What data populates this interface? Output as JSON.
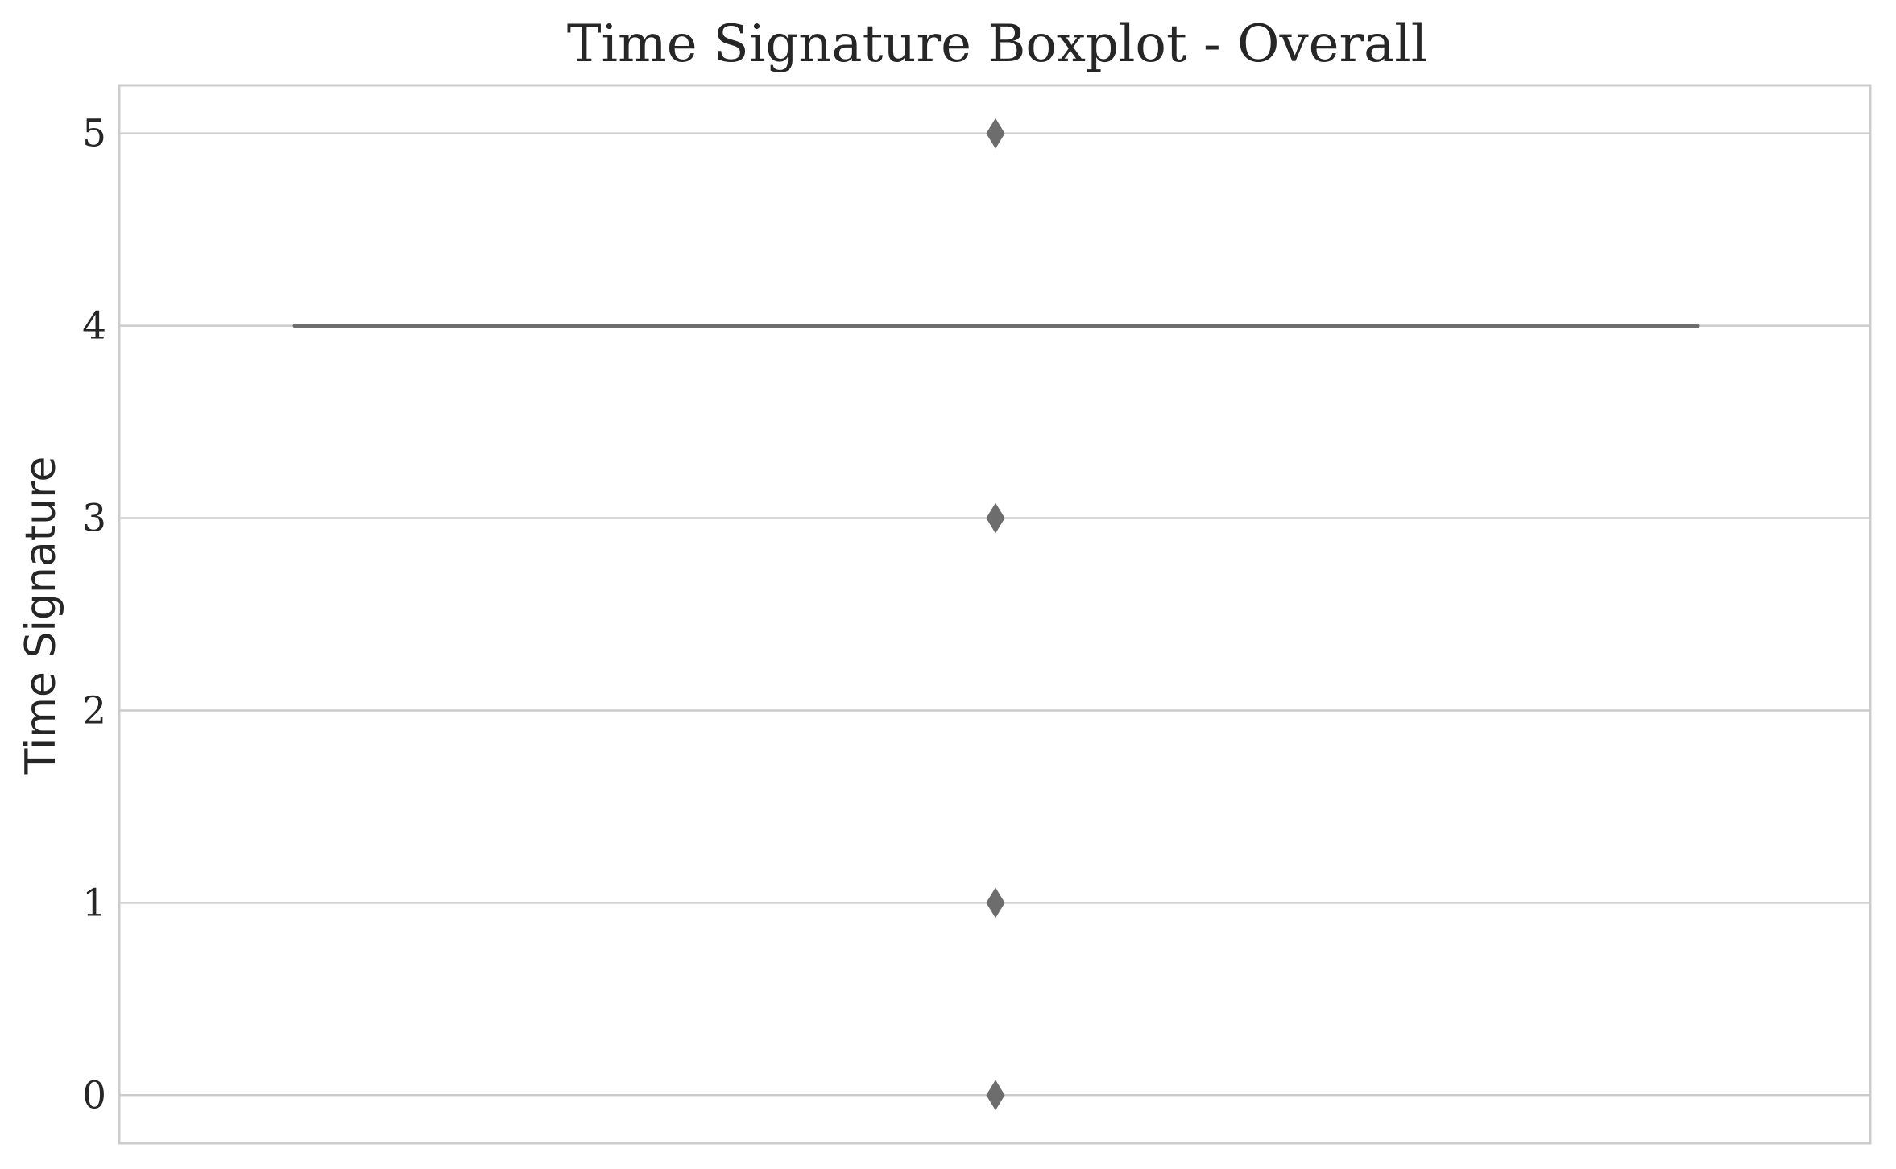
{
  "chart_data": {
    "type": "boxplot",
    "title": "Time Signature Boxplot - Overall",
    "xlabel": "",
    "ylabel": "Time Signature",
    "ylim": [
      -0.25,
      5.25
    ],
    "yticks": [
      0,
      1,
      2,
      3,
      4,
      5
    ],
    "ytick_labels": [
      "0",
      "1",
      "2",
      "3",
      "4",
      "5"
    ],
    "grid": true,
    "box": {
      "min": 4,
      "q1": 4,
      "median": 4,
      "q3": 4,
      "max": 4,
      "outliers": [
        5,
        3,
        1,
        0
      ]
    },
    "colors": {
      "box": "#6d6d6d",
      "grid": "#cccccc",
      "spine": "#cccccc",
      "text": "#262626"
    }
  }
}
